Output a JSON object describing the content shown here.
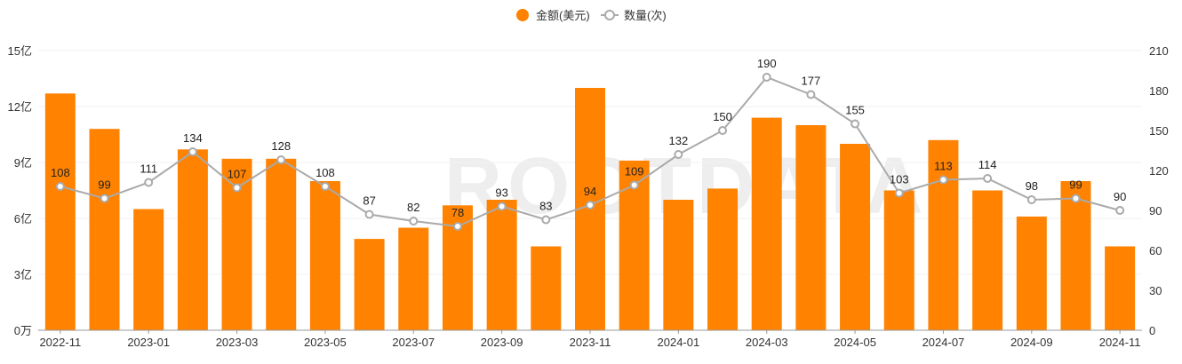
{
  "legend": {
    "amount_label": "金额(美元)",
    "count_label": "数量(次)"
  },
  "watermark": "ROOTDATA",
  "colors": {
    "bar": "#FF8200",
    "line": "#AAAAAA",
    "axis": "#999999",
    "grid": "#F2F2F2"
  },
  "chart_data": {
    "type": "bar",
    "categories": [
      "2022-11",
      "2022-12",
      "2023-01",
      "2023-02",
      "2023-03",
      "2023-04",
      "2023-05",
      "2023-06",
      "2023-07",
      "2023-08",
      "2023-09",
      "2023-10",
      "2023-11",
      "2023-12",
      "2024-01",
      "2024-02",
      "2024-03",
      "2024-04",
      "2024-05",
      "2024-06",
      "2024-07",
      "2024-08",
      "2024-09",
      "2024-10",
      "2024-11"
    ],
    "x_tick_labels": [
      "2022-11",
      "",
      "2023-01",
      "",
      "2023-03",
      "",
      "2023-05",
      "",
      "2023-07",
      "",
      "2023-09",
      "",
      "2023-11",
      "",
      "2024-01",
      "",
      "2024-03",
      "",
      "2024-05",
      "",
      "2024-07",
      "",
      "2024-09",
      "",
      "2024-11"
    ],
    "series": [
      {
        "name": "金额(美元)",
        "type": "bar",
        "axis": "left",
        "values": [
          12.7,
          10.8,
          6.5,
          9.7,
          9.2,
          9.2,
          8.0,
          4.9,
          5.5,
          6.7,
          7.0,
          4.5,
          13.0,
          9.1,
          7.0,
          7.6,
          11.4,
          11.0,
          10.0,
          7.5,
          10.2,
          7.5,
          6.1,
          8.0,
          4.5
        ]
      },
      {
        "name": "数量(次)",
        "type": "line",
        "axis": "right",
        "values": [
          108,
          99,
          111,
          134,
          107,
          128,
          108,
          87,
          82,
          78,
          93,
          83,
          94,
          109,
          132,
          150,
          190,
          177,
          155,
          103,
          113,
          114,
          98,
          99,
          90
        ]
      }
    ],
    "y_left": {
      "ylim": [
        0,
        15
      ],
      "ticks": [
        "0万",
        "3亿",
        "6亿",
        "9亿",
        "12亿",
        "15亿"
      ]
    },
    "y_right": {
      "ylim": [
        0,
        210
      ],
      "ticks": [
        "0",
        "30",
        "60",
        "90",
        "120",
        "150",
        "180",
        "210"
      ]
    },
    "legend_position": "top-center",
    "grid": true
  }
}
